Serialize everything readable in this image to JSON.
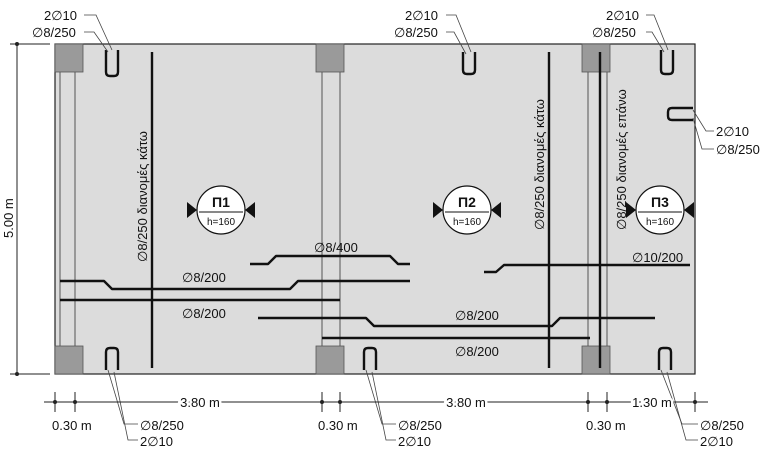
{
  "dimensions": {
    "height": "5.00 m",
    "spans": [
      "3.80 m",
      "3.80 m",
      "1.30 m"
    ],
    "supports": [
      "0.30 m",
      "0.30 m",
      "0.30 m"
    ]
  },
  "slabs": [
    {
      "name": "Π1",
      "h": "h=160"
    },
    {
      "name": "Π2",
      "h": "h=160"
    },
    {
      "name": "Π3",
      "h": "h=160"
    }
  ],
  "callouts": {
    "bars": "2∅10",
    "stirrups": "∅8/250"
  },
  "reinforcement": {
    "top_mid": "∅8/400",
    "p1_bottom_1": "∅8/200",
    "p1_bottom_2": "∅8/200",
    "p2_bottom_1": "∅8/200",
    "p2_bottom_2": "∅8/200",
    "p3_bottom": "∅10/200",
    "dist_bottom_p1": "∅8/250  διανομές κάτω",
    "dist_bottom_p2": "∅8/250  διανομές κάτω",
    "dist_top_p3": "∅8/250  διανομές επάνω"
  }
}
